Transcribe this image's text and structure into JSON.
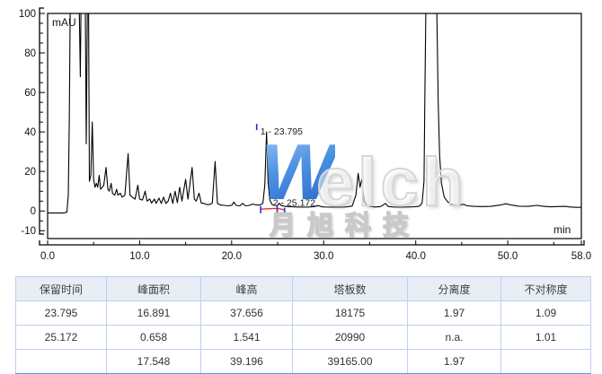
{
  "chart_data": {
    "type": "line",
    "xlabel": "min",
    "ylabel": "mAU",
    "xlim": [
      0,
      58
    ],
    "ylim": [
      -14,
      100
    ],
    "grid": false,
    "xticks": {
      "values": [
        0,
        10,
        20,
        30,
        40,
        50,
        58
      ],
      "labels": [
        "0.0",
        "10.0",
        "20.0",
        "30.0",
        "40.0",
        "50.0",
        "58.0"
      ],
      "minor": [
        5,
        15,
        25,
        35,
        45,
        55
      ]
    },
    "yticks": {
      "values": [
        -10,
        0,
        20,
        40,
        60,
        80,
        100
      ],
      "labels": [
        "-10",
        "0",
        "20",
        "40",
        "60",
        "80",
        "100"
      ],
      "minor": [
        -5,
        5,
        10,
        15,
        25,
        30,
        35,
        45,
        50,
        55,
        65,
        70,
        75,
        85,
        90,
        95
      ]
    },
    "clip_level": 100,
    "trace": [
      [
        0,
        -1
      ],
      [
        1.8,
        -1
      ],
      [
        2.1,
        -0.5
      ],
      [
        2.25,
        8
      ],
      [
        2.35,
        45
      ],
      [
        2.45,
        100
      ],
      [
        3.45,
        100
      ],
      [
        3.55,
        68
      ],
      [
        3.62,
        100
      ],
      [
        4.1,
        100
      ],
      [
        4.2,
        34
      ],
      [
        4.32,
        100
      ],
      [
        4.45,
        100
      ],
      [
        4.54,
        15
      ],
      [
        4.7,
        18
      ],
      [
        4.85,
        45
      ],
      [
        5.0,
        16
      ],
      [
        5.15,
        12
      ],
      [
        5.3,
        14
      ],
      [
        5.45,
        12
      ],
      [
        5.6,
        18
      ],
      [
        5.75,
        11
      ],
      [
        5.95,
        12
      ],
      [
        6.1,
        13
      ],
      [
        6.35,
        22
      ],
      [
        6.55,
        11
      ],
      [
        6.7,
        10
      ],
      [
        6.9,
        14
      ],
      [
        7.05,
        9
      ],
      [
        7.3,
        8
      ],
      [
        7.5,
        11
      ],
      [
        7.65,
        8
      ],
      [
        7.9,
        9
      ],
      [
        8.1,
        7
      ],
      [
        8.4,
        8
      ],
      [
        8.75,
        29
      ],
      [
        8.95,
        8
      ],
      [
        9.2,
        7
      ],
      [
        9.5,
        6
      ],
      [
        9.8,
        13
      ],
      [
        10.0,
        6
      ],
      [
        10.3,
        5.5
      ],
      [
        10.6,
        10
      ],
      [
        10.8,
        5
      ],
      [
        11.1,
        6
      ],
      [
        11.3,
        4
      ],
      [
        11.6,
        6
      ],
      [
        11.8,
        3.8
      ],
      [
        12.1,
        6.5
      ],
      [
        12.35,
        3.8
      ],
      [
        12.6,
        7
      ],
      [
        12.85,
        3.8
      ],
      [
        13.1,
        5
      ],
      [
        13.35,
        9
      ],
      [
        13.6,
        3.8
      ],
      [
        13.85,
        10
      ],
      [
        14.1,
        4.2
      ],
      [
        14.35,
        12
      ],
      [
        14.6,
        5
      ],
      [
        15.0,
        16
      ],
      [
        15.25,
        6
      ],
      [
        15.7,
        22
      ],
      [
        15.95,
        6
      ],
      [
        16.15,
        5
      ],
      [
        16.45,
        9
      ],
      [
        16.7,
        4
      ],
      [
        17.0,
        3.8
      ],
      [
        17.3,
        3.2
      ],
      [
        17.6,
        3.2
      ],
      [
        17.9,
        4
      ],
      [
        18.2,
        25
      ],
      [
        18.45,
        3.8
      ],
      [
        18.8,
        3
      ],
      [
        19.2,
        2.8
      ],
      [
        19.6,
        2.6
      ],
      [
        20.0,
        2.8
      ],
      [
        20.25,
        4.5
      ],
      [
        20.5,
        2.8
      ],
      [
        20.9,
        2.6
      ],
      [
        21.2,
        3.8
      ],
      [
        21.5,
        2.6
      ],
      [
        21.9,
        2.8
      ],
      [
        22.3,
        3.5
      ],
      [
        22.7,
        3
      ],
      [
        23.1,
        3
      ],
      [
        23.4,
        4
      ],
      [
        23.6,
        13
      ],
      [
        23.795,
        40
      ],
      [
        23.95,
        15
      ],
      [
        24.15,
        5.5
      ],
      [
        24.4,
        3.2
      ],
      [
        24.7,
        2.8
      ],
      [
        24.95,
        2.7
      ],
      [
        25.172,
        3.9
      ],
      [
        25.4,
        2.7
      ],
      [
        25.7,
        2.4
      ],
      [
        26.1,
        2.2
      ],
      [
        26.6,
        2.1
      ],
      [
        27.2,
        2
      ],
      [
        27.8,
        1.9
      ],
      [
        28.4,
        2
      ],
      [
        29.0,
        2.2
      ],
      [
        29.4,
        2.7
      ],
      [
        29.8,
        2.1
      ],
      [
        30.5,
        1.9
      ],
      [
        31.2,
        2
      ],
      [
        31.9,
        1.9
      ],
      [
        32.6,
        2.1
      ],
      [
        33.1,
        2.5
      ],
      [
        33.5,
        8
      ],
      [
        33.75,
        19
      ],
      [
        33.95,
        12
      ],
      [
        34.15,
        16
      ],
      [
        34.4,
        5
      ],
      [
        34.7,
        2.8
      ],
      [
        35.1,
        2.2
      ],
      [
        35.6,
        2
      ],
      [
        36.2,
        2.2
      ],
      [
        36.7,
        3.8
      ],
      [
        37.0,
        2.3
      ],
      [
        37.5,
        2
      ],
      [
        38.2,
        1.9
      ],
      [
        39.0,
        2
      ],
      [
        39.8,
        2.1
      ],
      [
        40.4,
        2.4
      ],
      [
        40.7,
        4
      ],
      [
        40.9,
        15
      ],
      [
        41.0,
        60
      ],
      [
        41.1,
        100
      ],
      [
        42.3,
        100
      ],
      [
        42.45,
        55
      ],
      [
        42.6,
        28
      ],
      [
        42.8,
        14
      ],
      [
        43.1,
        7
      ],
      [
        43.5,
        4.5
      ],
      [
        44.0,
        3.2
      ],
      [
        44.6,
        2.8
      ],
      [
        45.2,
        3.4
      ],
      [
        45.6,
        2.6
      ],
      [
        46.3,
        2.3
      ],
      [
        47.2,
        2.2
      ],
      [
        48.2,
        2.3
      ],
      [
        49.2,
        3
      ],
      [
        49.8,
        3.6
      ],
      [
        50.4,
        3
      ],
      [
        51.2,
        2.4
      ],
      [
        52.2,
        2.3
      ],
      [
        53.2,
        2.8
      ],
      [
        53.8,
        2.4
      ],
      [
        54.6,
        2.1
      ],
      [
        55.4,
        2.2
      ],
      [
        56.2,
        2.3
      ],
      [
        56.8,
        2
      ],
      [
        57.4,
        1.8
      ],
      [
        58,
        1.8
      ]
    ],
    "integration": {
      "baseline": [
        [
          23.15,
          0.9
        ],
        [
          24.95,
          1.3
        ],
        [
          25.75,
          0.6
        ]
      ],
      "markers": [
        {
          "t": 23.15,
          "v1": -1.2,
          "v2": 2.4
        },
        {
          "t": 24.95,
          "v1": -2.8,
          "v2": 2.8
        },
        {
          "t": 25.75,
          "v1": -2.8,
          "v2": 1.6
        }
      ]
    },
    "peaks": [
      {
        "label": "1 - 23.795",
        "t": 23.795,
        "v": 40,
        "apex_tick": true
      },
      {
        "label": "2 - 25.172",
        "t": 25.172,
        "v": 3.9,
        "apex_tick": false
      }
    ]
  },
  "watermark": {
    "brand_initial": "W",
    "brand_rest": "elch",
    "company_cn": "月旭科技"
  },
  "table": {
    "headers": [
      "保留时间",
      "峰面积",
      "峰高",
      "塔板数",
      "分离度",
      "不对称度"
    ],
    "rows": [
      [
        "23.795",
        "16.891",
        "37.656",
        "18175",
        "1.97",
        "1.09"
      ],
      [
        "25.172",
        "0.658",
        "1.541",
        "20990",
        "n.a.",
        "1.01"
      ],
      [
        "",
        "17.548",
        "39.196",
        "39165.00",
        "1.97",
        ""
      ]
    ]
  },
  "colors": {
    "trace": "#000000",
    "integration_baseline": "#e03030",
    "peak_marker": "#2b2bd6",
    "table_border": "#bcd0ee",
    "table_header_bg": "#e9edf5",
    "table_bottom_bar": "#5b8ff9",
    "watermark_blue": "#4a90e2"
  }
}
